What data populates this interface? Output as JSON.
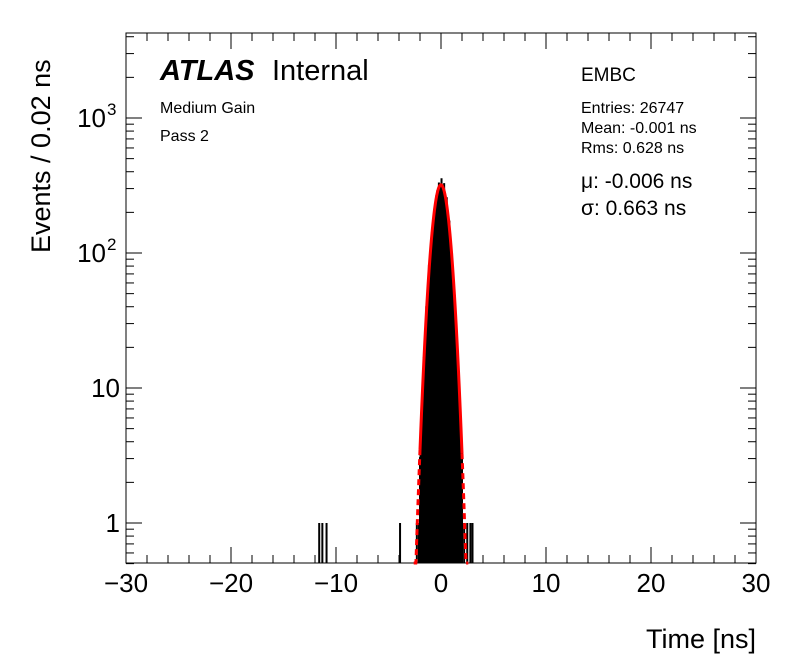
{
  "chart_data": {
    "type": "histogram",
    "xlabel": "Time [ns]",
    "ylabel": "Events / 0.02 ns",
    "xlim": [
      -30,
      30
    ],
    "ylim": [
      0.5,
      4000
    ],
    "y_scale": "log",
    "grid": false,
    "x_ticks": [
      -30,
      -20,
      -10,
      0,
      10,
      20,
      30
    ],
    "x_tick_labels": [
      "−30",
      "−20",
      "−10",
      "0",
      "10",
      "20",
      "30"
    ],
    "y_ticks": [
      {
        "value": 1,
        "base": "1",
        "exp": ""
      },
      {
        "value": 10,
        "base": "10",
        "exp": ""
      },
      {
        "value": 100,
        "base": "10",
        "exp": "2"
      },
      {
        "value": 1000,
        "base": "10",
        "exp": "3"
      }
    ],
    "labels": {
      "atlas": "ATLAS",
      "internal": "Internal",
      "gain": "Medium Gain",
      "pass": "Pass 2",
      "partition": "EMBC",
      "entries": "Entries: 26747",
      "mean": "Mean: -0.001 ns",
      "rms": "Rms: 0.628 ns",
      "mu": "μ: -0.006 ns",
      "sigma": "σ: 0.663 ns"
    },
    "series": [
      {
        "type": "histogram",
        "color": "#000000",
        "bin_width": 0.02,
        "spikes": [
          {
            "x": -11.6,
            "y": 1
          },
          {
            "x": -11.3,
            "y": 1
          },
          {
            "x": -10.9,
            "y": 1
          },
          {
            "x": -3.9,
            "y": 1
          },
          {
            "x": -2.3,
            "y": 1
          },
          {
            "x": -2.1,
            "y": 1
          },
          {
            "x": 2.2,
            "y": 1
          },
          {
            "x": 2.5,
            "y": 1
          },
          {
            "x": 2.8,
            "y": 1
          },
          {
            "x": 3.0,
            "y": 1
          }
        ],
        "core": {
          "mu": -0.006,
          "sigma": 0.663,
          "peak": 320,
          "xmin": -2.0,
          "xmax": 2.0
        }
      },
      {
        "type": "gaussian_fit",
        "color": "#ff0000",
        "mu": -0.006,
        "sigma": 0.663,
        "peak": 320,
        "solid_range": [
          -2.0,
          2.0
        ],
        "dashed_range": [
          -2.6,
          2.6
        ]
      }
    ]
  }
}
